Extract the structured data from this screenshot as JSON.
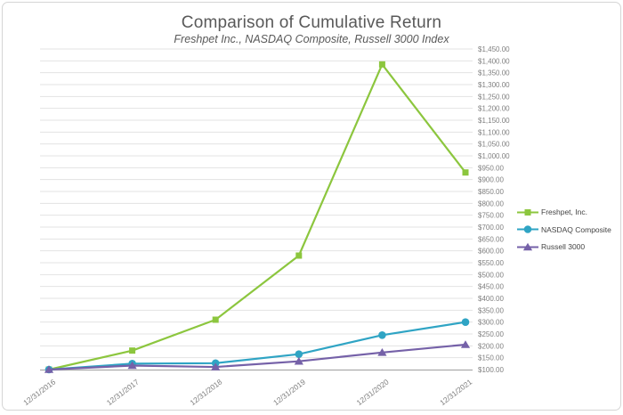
{
  "window": {
    "background": "#ffffff",
    "border_color": "#d5d5d5"
  },
  "chart_data": {
    "type": "line",
    "title": "Comparison of Cumulative Return",
    "subtitle": "Freshpet Inc., NASDAQ Composite, Russell 3000 Index",
    "categories": [
      "12/31/2016",
      "12/31/2017",
      "12/31/2018",
      "12/31/2019",
      "12/31/2020",
      "12/31/2021"
    ],
    "series": [
      {
        "name": "Freshpet, Inc.",
        "marker": "square",
        "color": "#8CC63E",
        "values": [
          100,
          180,
          310,
          580,
          1385,
          930
        ]
      },
      {
        "name": "NASDAQ Composite",
        "marker": "circle",
        "color": "#2FA4C4",
        "values": [
          100,
          125,
          127,
          165,
          245,
          300
        ]
      },
      {
        "name": "Russell 3000",
        "marker": "triangle",
        "color": "#7561A8",
        "values": [
          100,
          117,
          111,
          135,
          172,
          205
        ]
      }
    ],
    "y_axis": {
      "min": 100,
      "max": 1450,
      "step": 50,
      "unit": "$",
      "format": "currency_2dp",
      "side": "right"
    },
    "x_axis": {
      "label_rotation_deg": -37
    },
    "legend_position": "right",
    "grid": true,
    "colors": {
      "gridline": "#e3e3e3",
      "axis_line": "#ababab",
      "tick_label": "#7f7f7f",
      "title_text": "#595959"
    }
  }
}
